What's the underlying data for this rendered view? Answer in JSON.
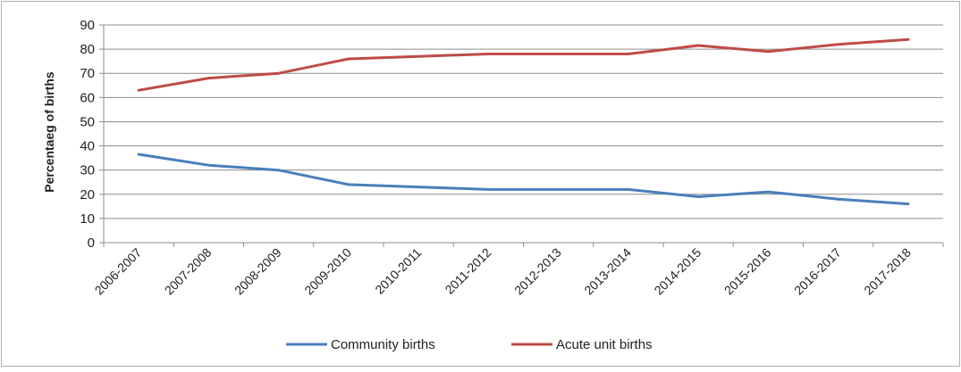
{
  "chart_data": {
    "type": "line",
    "title": "",
    "xlabel": "",
    "ylabel": "Percentaeg of births",
    "ylim": [
      0,
      90
    ],
    "ytick_step": 10,
    "grid": true,
    "legend_position": "bottom",
    "categories": [
      "2006-2007",
      "2007-2008",
      "2008-2009",
      "2009-2010",
      "2010-2011",
      "2011-2012",
      "2012-2013",
      "2013-2014",
      "2014-2015",
      "2015-2016",
      "2016-2017",
      "2017-2018"
    ],
    "series": [
      {
        "name": "Community births",
        "color": "#4a7ebb",
        "values": [
          36.5,
          32,
          30,
          24,
          23,
          22,
          22,
          22,
          19,
          21,
          18,
          16
        ]
      },
      {
        "name": "Acute unit births",
        "color": "#be4b48",
        "values": [
          63,
          68,
          70,
          76,
          77,
          78,
          78,
          78,
          81.5,
          79,
          82,
          84
        ]
      }
    ]
  }
}
